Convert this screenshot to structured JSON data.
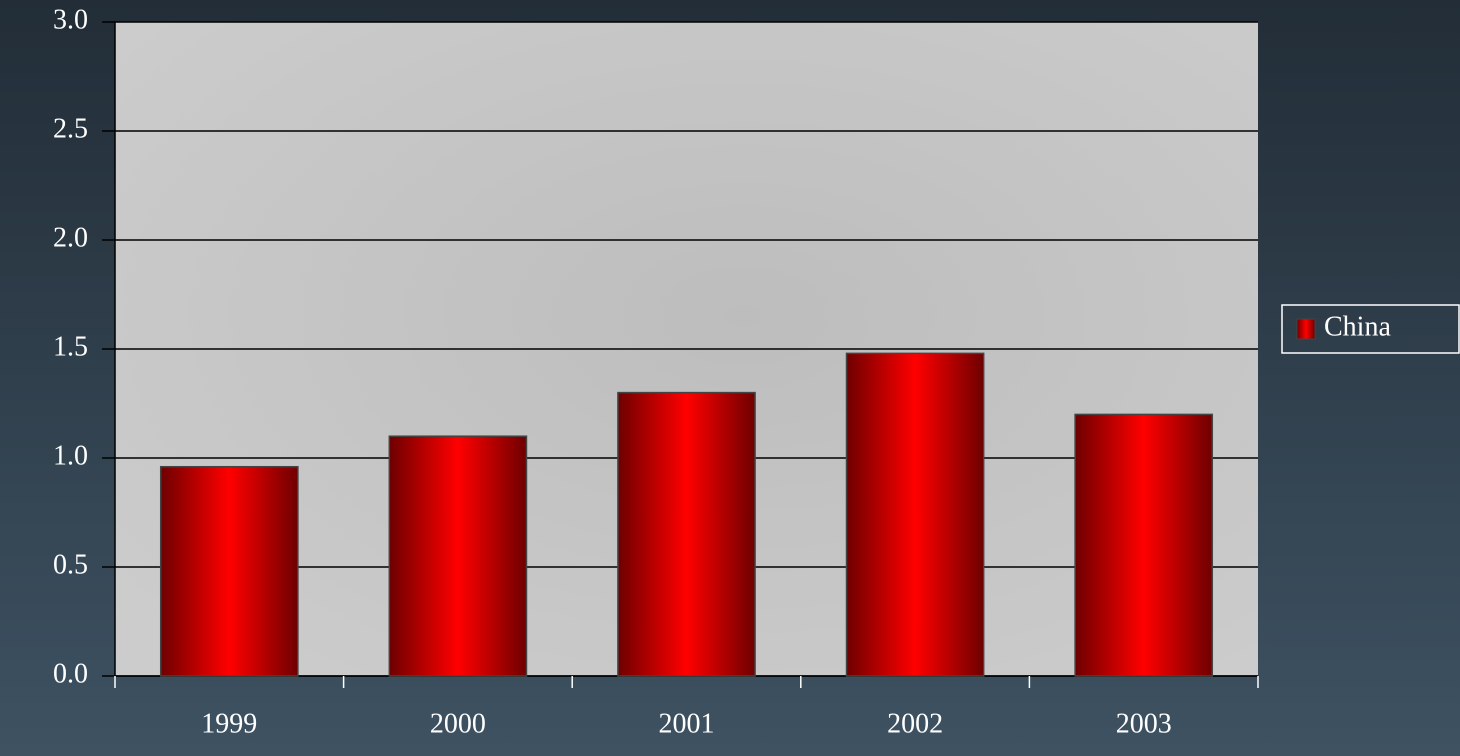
{
  "chart_data": {
    "type": "bar",
    "categories": [
      "1999",
      "2000",
      "2001",
      "2002",
      "2003"
    ],
    "series": [
      {
        "name": "China",
        "color": "#ff0000",
        "values": [
          0.96,
          1.1,
          1.3,
          1.48,
          1.2
        ]
      }
    ],
    "ylim": [
      0,
      3
    ],
    "yticks": [
      {
        "value": 0,
        "label": "0.0"
      },
      {
        "value": 0.5,
        "label": "0.5"
      },
      {
        "value": 1,
        "label": "1.0"
      },
      {
        "value": 1.5,
        "label": "1.5"
      },
      {
        "value": 2,
        "label": "2.0"
      },
      {
        "value": 2.5,
        "label": "2.5"
      },
      {
        "value": 3,
        "label": "3.0"
      }
    ],
    "grid": true,
    "legend": "right"
  }
}
